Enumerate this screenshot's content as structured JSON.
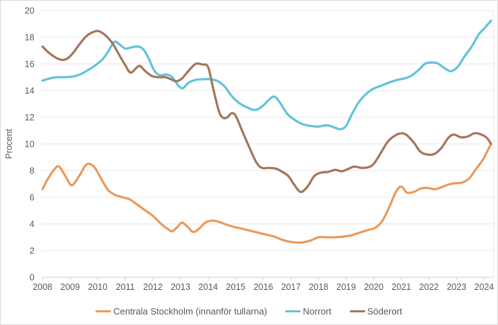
{
  "chart_data": {
    "type": "line",
    "title": "",
    "xlabel": "",
    "ylabel": "Procent",
    "ylim": [
      0,
      20
    ],
    "ytick_step": 2,
    "yticks": [
      "0",
      "2",
      "4",
      "6",
      "8",
      "10",
      "12",
      "14",
      "16",
      "18",
      "20"
    ],
    "xticks": [
      "2008",
      "2009",
      "2010",
      "2011",
      "2012",
      "2013",
      "2014",
      "2015",
      "2016",
      "2017",
      "2018",
      "2019",
      "2020",
      "2021",
      "2022",
      "2023",
      "2024"
    ],
    "xlim": [
      2007.95,
      2024.4
    ],
    "grid": "horizontal",
    "legend_position": "bottom",
    "colors": {
      "grid": "#e7e7e7",
      "axis": "#d2d2d2",
      "text": "#595959"
    },
    "series": [
      {
        "name": "Centrala Stockholm (innanför tullarna)",
        "color": "#EC9A5A",
        "points": [
          [
            2008.0,
            6.6
          ],
          [
            2008.2,
            7.4
          ],
          [
            2008.45,
            8.15
          ],
          [
            2008.6,
            8.3
          ],
          [
            2008.8,
            7.7
          ],
          [
            2009.05,
            6.9
          ],
          [
            2009.3,
            7.5
          ],
          [
            2009.55,
            8.35
          ],
          [
            2009.7,
            8.5
          ],
          [
            2009.9,
            8.2
          ],
          [
            2010.1,
            7.5
          ],
          [
            2010.35,
            6.6
          ],
          [
            2010.6,
            6.2
          ],
          [
            2010.9,
            6.0
          ],
          [
            2011.15,
            5.85
          ],
          [
            2011.4,
            5.5
          ],
          [
            2011.7,
            5.05
          ],
          [
            2012.0,
            4.6
          ],
          [
            2012.3,
            4.0
          ],
          [
            2012.55,
            3.6
          ],
          [
            2012.7,
            3.45
          ],
          [
            2012.9,
            3.8
          ],
          [
            2013.05,
            4.1
          ],
          [
            2013.25,
            3.8
          ],
          [
            2013.45,
            3.4
          ],
          [
            2013.65,
            3.6
          ],
          [
            2013.9,
            4.1
          ],
          [
            2014.15,
            4.25
          ],
          [
            2014.4,
            4.15
          ],
          [
            2014.65,
            3.95
          ],
          [
            2014.9,
            3.8
          ],
          [
            2015.2,
            3.65
          ],
          [
            2015.5,
            3.5
          ],
          [
            2015.8,
            3.35
          ],
          [
            2016.1,
            3.2
          ],
          [
            2016.4,
            3.05
          ],
          [
            2016.7,
            2.8
          ],
          [
            2017.0,
            2.65
          ],
          [
            2017.35,
            2.6
          ],
          [
            2017.7,
            2.75
          ],
          [
            2018.0,
            3.0
          ],
          [
            2018.3,
            3.0
          ],
          [
            2018.6,
            3.0
          ],
          [
            2018.9,
            3.05
          ],
          [
            2019.2,
            3.15
          ],
          [
            2019.5,
            3.35
          ],
          [
            2019.8,
            3.55
          ],
          [
            2020.05,
            3.7
          ],
          [
            2020.3,
            4.2
          ],
          [
            2020.55,
            5.2
          ],
          [
            2020.8,
            6.4
          ],
          [
            2021.0,
            6.8
          ],
          [
            2021.2,
            6.35
          ],
          [
            2021.45,
            6.4
          ],
          [
            2021.7,
            6.65
          ],
          [
            2021.95,
            6.7
          ],
          [
            2022.2,
            6.6
          ],
          [
            2022.45,
            6.75
          ],
          [
            2022.7,
            6.95
          ],
          [
            2022.95,
            7.05
          ],
          [
            2023.2,
            7.1
          ],
          [
            2023.45,
            7.4
          ],
          [
            2023.7,
            8.1
          ],
          [
            2023.95,
            8.8
          ],
          [
            2024.1,
            9.4
          ],
          [
            2024.25,
            10.0
          ]
        ]
      },
      {
        "name": "Norrort",
        "color": "#62C3DB",
        "points": [
          [
            2008.0,
            14.75
          ],
          [
            2008.25,
            14.9
          ],
          [
            2008.5,
            15.0
          ],
          [
            2008.8,
            15.0
          ],
          [
            2009.1,
            15.05
          ],
          [
            2009.4,
            15.25
          ],
          [
            2009.7,
            15.6
          ],
          [
            2009.95,
            15.95
          ],
          [
            2010.2,
            16.4
          ],
          [
            2010.4,
            17.0
          ],
          [
            2010.6,
            17.65
          ],
          [
            2010.8,
            17.45
          ],
          [
            2011.0,
            17.15
          ],
          [
            2011.25,
            17.25
          ],
          [
            2011.45,
            17.3
          ],
          [
            2011.65,
            17.1
          ],
          [
            2011.85,
            16.4
          ],
          [
            2012.05,
            15.5
          ],
          [
            2012.25,
            15.15
          ],
          [
            2012.5,
            15.2
          ],
          [
            2012.7,
            15.0
          ],
          [
            2012.95,
            14.3
          ],
          [
            2013.1,
            14.2
          ],
          [
            2013.3,
            14.6
          ],
          [
            2013.55,
            14.8
          ],
          [
            2013.8,
            14.85
          ],
          [
            2014.1,
            14.85
          ],
          [
            2014.35,
            14.7
          ],
          [
            2014.6,
            14.3
          ],
          [
            2014.85,
            13.6
          ],
          [
            2015.1,
            13.1
          ],
          [
            2015.4,
            12.75
          ],
          [
            2015.7,
            12.55
          ],
          [
            2015.95,
            12.8
          ],
          [
            2016.2,
            13.3
          ],
          [
            2016.4,
            13.55
          ],
          [
            2016.6,
            13.1
          ],
          [
            2016.85,
            12.3
          ],
          [
            2017.1,
            11.85
          ],
          [
            2017.4,
            11.5
          ],
          [
            2017.7,
            11.35
          ],
          [
            2018.0,
            11.3
          ],
          [
            2018.3,
            11.4
          ],
          [
            2018.55,
            11.25
          ],
          [
            2018.8,
            11.1
          ],
          [
            2019.0,
            11.35
          ],
          [
            2019.2,
            12.2
          ],
          [
            2019.45,
            13.1
          ],
          [
            2019.7,
            13.7
          ],
          [
            2019.95,
            14.1
          ],
          [
            2020.25,
            14.35
          ],
          [
            2020.55,
            14.6
          ],
          [
            2020.85,
            14.8
          ],
          [
            2021.1,
            14.9
          ],
          [
            2021.35,
            15.1
          ],
          [
            2021.6,
            15.5
          ],
          [
            2021.85,
            16.0
          ],
          [
            2022.05,
            16.1
          ],
          [
            2022.3,
            16.05
          ],
          [
            2022.55,
            15.7
          ],
          [
            2022.8,
            15.45
          ],
          [
            2023.05,
            15.8
          ],
          [
            2023.3,
            16.6
          ],
          [
            2023.55,
            17.3
          ],
          [
            2023.8,
            18.2
          ],
          [
            2024.0,
            18.65
          ],
          [
            2024.25,
            19.25
          ]
        ]
      },
      {
        "name": "Söderort",
        "color": "#A4765C",
        "points": [
          [
            2008.0,
            17.3
          ],
          [
            2008.25,
            16.8
          ],
          [
            2008.5,
            16.45
          ],
          [
            2008.7,
            16.3
          ],
          [
            2008.9,
            16.4
          ],
          [
            2009.1,
            16.8
          ],
          [
            2009.35,
            17.5
          ],
          [
            2009.6,
            18.1
          ],
          [
            2009.85,
            18.4
          ],
          [
            2010.05,
            18.45
          ],
          [
            2010.3,
            18.1
          ],
          [
            2010.55,
            17.5
          ],
          [
            2010.8,
            16.6
          ],
          [
            2011.0,
            15.9
          ],
          [
            2011.2,
            15.35
          ],
          [
            2011.5,
            15.85
          ],
          [
            2011.7,
            15.5
          ],
          [
            2011.95,
            15.1
          ],
          [
            2012.2,
            15.0
          ],
          [
            2012.45,
            15.0
          ],
          [
            2012.65,
            14.85
          ],
          [
            2012.85,
            14.7
          ],
          [
            2013.05,
            14.9
          ],
          [
            2013.3,
            15.5
          ],
          [
            2013.55,
            16.0
          ],
          [
            2013.8,
            15.95
          ],
          [
            2014.0,
            15.75
          ],
          [
            2014.2,
            14.0
          ],
          [
            2014.4,
            12.4
          ],
          [
            2014.55,
            11.95
          ],
          [
            2014.7,
            12.0
          ],
          [
            2014.85,
            12.3
          ],
          [
            2015.0,
            12.1
          ],
          [
            2015.25,
            10.9
          ],
          [
            2015.5,
            9.7
          ],
          [
            2015.75,
            8.6
          ],
          [
            2015.95,
            8.2
          ],
          [
            2016.2,
            8.2
          ],
          [
            2016.45,
            8.15
          ],
          [
            2016.65,
            7.95
          ],
          [
            2016.9,
            7.6
          ],
          [
            2017.1,
            7.0
          ],
          [
            2017.35,
            6.4
          ],
          [
            2017.6,
            6.8
          ],
          [
            2017.85,
            7.6
          ],
          [
            2018.1,
            7.85
          ],
          [
            2018.35,
            7.9
          ],
          [
            2018.6,
            8.05
          ],
          [
            2018.85,
            7.95
          ],
          [
            2019.1,
            8.15
          ],
          [
            2019.3,
            8.3
          ],
          [
            2019.55,
            8.2
          ],
          [
            2019.8,
            8.25
          ],
          [
            2020.0,
            8.5
          ],
          [
            2020.25,
            9.3
          ],
          [
            2020.5,
            10.15
          ],
          [
            2020.75,
            10.6
          ],
          [
            2021.0,
            10.8
          ],
          [
            2021.2,
            10.65
          ],
          [
            2021.45,
            10.1
          ],
          [
            2021.7,
            9.4
          ],
          [
            2021.95,
            9.2
          ],
          [
            2022.2,
            9.25
          ],
          [
            2022.45,
            9.7
          ],
          [
            2022.7,
            10.45
          ],
          [
            2022.9,
            10.7
          ],
          [
            2023.15,
            10.5
          ],
          [
            2023.4,
            10.55
          ],
          [
            2023.65,
            10.8
          ],
          [
            2023.9,
            10.7
          ],
          [
            2024.1,
            10.45
          ],
          [
            2024.25,
            10.0
          ]
        ]
      }
    ]
  }
}
